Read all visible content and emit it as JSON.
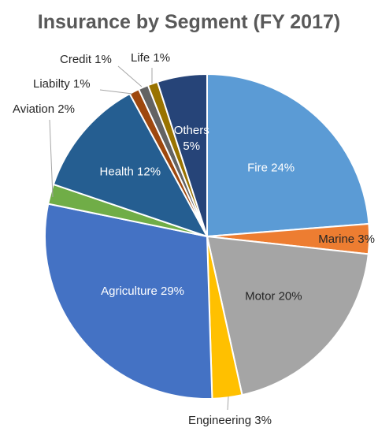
{
  "chart_data": {
    "type": "pie",
    "title": "Insurance by Segment (FY 2017)",
    "slices": [
      {
        "name": "Fire",
        "value": 24,
        "label": "Fire 24%",
        "color": "#5b9bd5"
      },
      {
        "name": "Marine",
        "value": 3,
        "label": "Marine 3%",
        "color": "#ed7d31"
      },
      {
        "name": "Motor",
        "value": 20,
        "label": "Motor 20%",
        "color": "#a5a5a5"
      },
      {
        "name": "Engineering",
        "value": 3,
        "label": "Engineering 3%",
        "color": "#ffc000"
      },
      {
        "name": "Agriculture",
        "value": 29,
        "label": "Agriculture 29%",
        "color": "#4472c4"
      },
      {
        "name": "Aviation",
        "value": 2,
        "label": "Aviation 2%",
        "color": "#70ad47"
      },
      {
        "name": "Health",
        "value": 12,
        "label": "Health 12%",
        "color": "#255e91"
      },
      {
        "name": "Liabilty",
        "value": 1,
        "label": "Liabilty 1%",
        "color": "#9e480e"
      },
      {
        "name": "Credit",
        "value": 1,
        "label": "Credit 1%",
        "color": "#636363"
      },
      {
        "name": "Life",
        "value": 1,
        "label": "Life 1%",
        "color": "#997300"
      },
      {
        "name": "Others",
        "value": 5,
        "label": "Others 5%",
        "color": "#264478"
      }
    ],
    "legend": "none",
    "labels": "data labels on or beside slices"
  }
}
